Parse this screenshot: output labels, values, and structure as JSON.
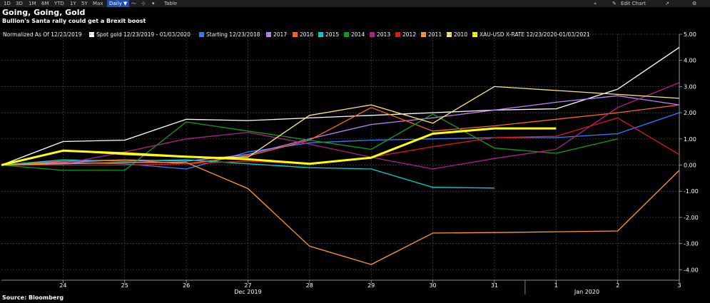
{
  "toolbar": {
    "buttons": [
      "1D",
      "3D",
      "1M",
      "6M",
      "YTD",
      "1Y",
      "5Y",
      "Max"
    ],
    "daily": "Daily ▼",
    "table": "Table",
    "edit_chart": "Edit Chart",
    "nav_left": "«",
    "edit_icon": "edit-icon",
    "gear_icon": "gear-icon"
  },
  "header": {
    "title": "Going, Going, Gold",
    "subtitle": "Bullion's Santa rally could get a Brexit boost"
  },
  "legend": {
    "normalized": "Normalized As Of 12/23/2019"
  },
  "source": "Source: Bloomberg",
  "colors": {
    "background": "#000000",
    "grid": "#4a4a4a"
  },
  "chart_data": {
    "type": "line",
    "title": "Going, Going, Gold",
    "subtitle": "Bullion's Santa rally could get a Brexit boost",
    "x": [
      "23",
      "24",
      "25",
      "26",
      "27",
      "28",
      "29",
      "30",
      "31",
      "1",
      "2",
      "3"
    ],
    "x_tick_labels": [
      "24",
      "25",
      "26",
      "27",
      "28",
      "29",
      "30",
      "31",
      "1",
      "2",
      "3"
    ],
    "x_group_labels": [
      "Dec 2019",
      "Jan 2020"
    ],
    "ylim": [
      -4.4,
      5.0
    ],
    "y_ticks": [
      "5.00",
      "4.00",
      "3.00",
      "2.00",
      "1.00",
      "0.00",
      "-1.00",
      "-2.00",
      "-3.00",
      "-4.00"
    ],
    "grid": true,
    "legend_position": "top",
    "series": [
      {
        "name": "Spot gold 12/23/2019 - 01/03/2020",
        "color": "#ffffff",
        "values": [
          0,
          0.9,
          0.95,
          1.75,
          1.7,
          1.8,
          1.9,
          2.0,
          2.1,
          2.15,
          2.9,
          4.5
        ]
      },
      {
        "name": "Starting 12/23/2018",
        "color": "#2f80ff",
        "values": [
          0,
          0.1,
          0.05,
          -0.15,
          0.5,
          0.85,
          0.95,
          1.0,
          1.05,
          1.05,
          1.2,
          2.0
        ]
      },
      {
        "name": "2017",
        "color": "#c080ff",
        "values": [
          0,
          0.1,
          0.2,
          0.15,
          0.4,
          1.0,
          1.55,
          1.8,
          2.1,
          2.4,
          2.65,
          2.3
        ]
      },
      {
        "name": "2016",
        "color": "#ff6a10",
        "values": [
          0,
          0.15,
          0.2,
          0.05,
          0.35,
          0.95,
          2.2,
          1.3,
          1.5,
          1.75,
          2.0,
          2.3
        ]
      },
      {
        "name": "2015",
        "color": "#00d2d2",
        "values": [
          0,
          0.2,
          0.15,
          0.2,
          0.05,
          -0.1,
          -0.15,
          -0.85,
          -0.88,
          null,
          null,
          null
        ]
      },
      {
        "name": "2014",
        "color": "#10a010",
        "values": [
          0,
          -0.2,
          -0.2,
          1.65,
          1.3,
          0.95,
          0.6,
          1.95,
          0.65,
          0.45,
          1.0,
          null
        ]
      },
      {
        "name": "2013",
        "color": "#b0208c",
        "values": [
          0,
          0.05,
          0.5,
          1.0,
          1.25,
          0.8,
          0.3,
          -0.15,
          0.25,
          0.6,
          2.2,
          3.15
        ]
      },
      {
        "name": "2012",
        "color": "#e01818",
        "values": [
          0,
          0.0,
          0.0,
          0.05,
          0.15,
          0.05,
          0.3,
          0.7,
          1.05,
          1.1,
          1.8,
          0.4
        ]
      },
      {
        "name": "2011",
        "color": "#ff9a30",
        "values": [
          0,
          0.05,
          0.1,
          0.1,
          -0.9,
          -3.1,
          -3.8,
          -2.6,
          -2.58,
          -2.55,
          -2.52,
          -0.2
        ]
      },
      {
        "name": "2010",
        "color": "#ffe87a",
        "values": [
          0,
          0.55,
          0.4,
          0.3,
          0.3,
          1.9,
          2.3,
          1.6,
          3.0,
          2.85,
          2.7,
          2.55
        ]
      },
      {
        "name": "XAU-USD X-RATE 12/23/2020-01/03/2021",
        "color": "#ffff00",
        "values": [
          0,
          0.55,
          0.45,
          0.32,
          0.22,
          0.05,
          0.28,
          1.2,
          1.4,
          1.4,
          null,
          null
        ]
      }
    ]
  }
}
